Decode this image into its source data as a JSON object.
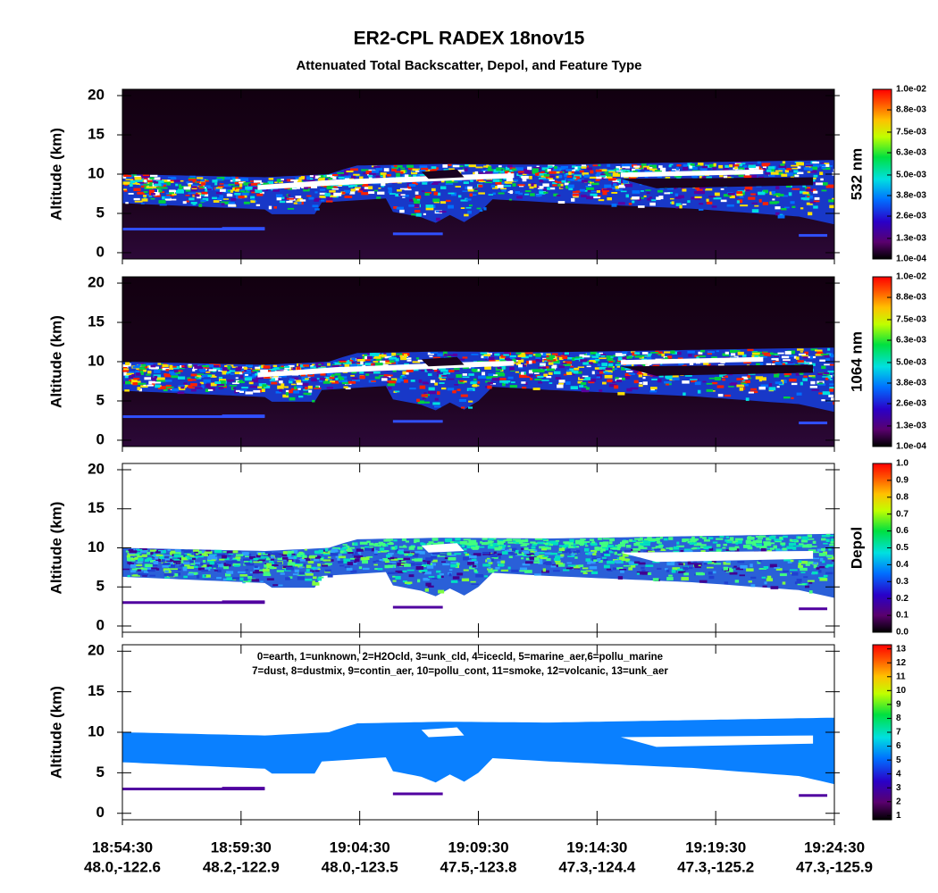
{
  "title": "ER2-CPL RADEX 18nov15",
  "subtitle": "Attenuated Total Backscatter, Depol, and Feature Type",
  "x_axis": {
    "times": [
      "18:54:30",
      "18:59:30",
      "19:04:30",
      "19:09:30",
      "19:14:30",
      "19:19:30",
      "19:24:30"
    ],
    "locations": [
      "48.0,-122.6",
      "48.2,-122.9",
      "48.0,-123.5",
      "47.5,-123.8",
      "47.3,-124.4",
      "47.3,-125.2",
      "47.3,-125.9"
    ]
  },
  "chart_data": [
    {
      "type": "heatmap",
      "ylabel": "Altitude (km)",
      "ylim": [
        -0.8,
        20.8
      ],
      "yticks": [
        0,
        5,
        10,
        15,
        20
      ],
      "colorbar": {
        "label": "532 nm",
        "clim": [
          0.0001,
          0.01
        ],
        "ticks": [
          {
            "value": 0.0001,
            "label": "1.0e-04"
          },
          {
            "value": 0.0013,
            "label": "1.3e-03"
          },
          {
            "value": 0.0026,
            "label": "2.6e-03"
          },
          {
            "value": 0.0038,
            "label": "3.8e-03"
          },
          {
            "value": 0.005,
            "label": "5.0e-03"
          },
          {
            "value": 0.0063,
            "label": "6.3e-03"
          },
          {
            "value": 0.0075,
            "label": "7.5e-03"
          },
          {
            "value": 0.0088,
            "label": "8.8e-03"
          },
          {
            "value": 0.01,
            "label": "1.0e-02"
          }
        ]
      }
    },
    {
      "type": "heatmap",
      "ylabel": "Altitude (km)",
      "ylim": [
        -0.8,
        20.8
      ],
      "yticks": [
        0,
        5,
        10,
        15,
        20
      ],
      "colorbar": {
        "label": "1064 nm",
        "clim": [
          0.0001,
          0.01
        ],
        "ticks": [
          {
            "value": 0.0001,
            "label": "1.0e-04"
          },
          {
            "value": 0.0013,
            "label": "1.3e-03"
          },
          {
            "value": 0.0026,
            "label": "2.6e-03"
          },
          {
            "value": 0.0038,
            "label": "3.8e-03"
          },
          {
            "value": 0.005,
            "label": "5.0e-03"
          },
          {
            "value": 0.0063,
            "label": "6.3e-03"
          },
          {
            "value": 0.0075,
            "label": "7.5e-03"
          },
          {
            "value": 0.0088,
            "label": "8.8e-03"
          },
          {
            "value": 0.01,
            "label": "1.0e-02"
          }
        ]
      }
    },
    {
      "type": "heatmap",
      "ylabel": "Altitude (km)",
      "ylim": [
        -0.8,
        20.8
      ],
      "yticks": [
        0,
        5,
        10,
        15,
        20
      ],
      "colorbar": {
        "label": "Depol",
        "clim": [
          0,
          1
        ],
        "ticks": [
          {
            "value": 0,
            "label": "0.0"
          },
          0.1,
          0.2,
          0.3,
          0.4,
          0.5,
          0.6,
          0.7,
          0.8,
          0.9,
          {
            "value": 1,
            "label": "1.0"
          }
        ]
      }
    },
    {
      "type": "heatmap",
      "ylabel": "Altitude (km)",
      "ylim": [
        -0.8,
        20.8
      ],
      "yticks": [
        0,
        5,
        10,
        15,
        20
      ],
      "legend": [
        "0=earth, 1=unknown, 2=H2Ocld, 3=unk_cld, 4=icecld, 5=marine_aer,6=pollu_marine",
        "7=dust, 8=dustmix, 9=contin_aer, 10=pollu_cont, 11=smoke, 12=volcanic, 13=unk_aer"
      ],
      "colorbar": {
        "clim": [
          0.7,
          13.3
        ],
        "ticks": [
          1,
          2,
          3,
          4,
          5,
          6,
          7,
          8,
          9,
          10,
          11,
          12,
          13
        ]
      }
    }
  ]
}
